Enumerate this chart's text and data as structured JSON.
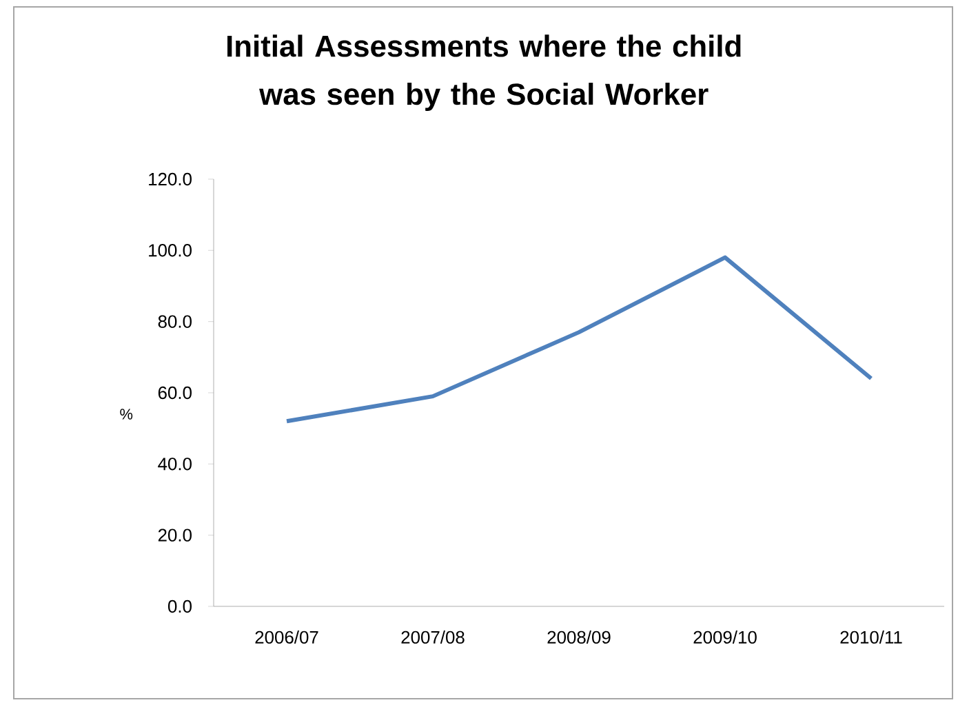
{
  "chart_data": {
    "type": "line",
    "title": "Initial Assessments where the child was seen by the Social Worker",
    "ylabel": "%",
    "categories": [
      "2006/07",
      "2007/08",
      "2008/09",
      "2009/10",
      "2010/11"
    ],
    "series": [
      {
        "color": "#4f81bd",
        "values": [
          52,
          59,
          77,
          98,
          64
        ]
      }
    ],
    "ylim": [
      0,
      120
    ],
    "yticks": [
      {
        "value": 0,
        "label": "0.0"
      },
      {
        "value": 20,
        "label": "20.0"
      },
      {
        "value": 40,
        "label": "40.0"
      },
      {
        "value": 60,
        "label": "60.0"
      },
      {
        "value": 80,
        "label": "80.0"
      },
      {
        "value": 100,
        "label": "100.0"
      },
      {
        "value": 120,
        "label": "120.0"
      }
    ],
    "grid": false,
    "marker": "none",
    "line_style": "solid"
  }
}
